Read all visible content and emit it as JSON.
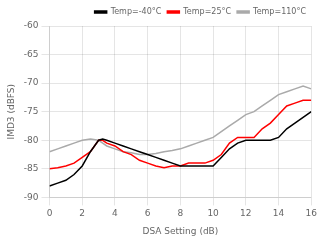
{
  "chart_data": {
    "type": "line",
    "xlabel": "DSA Setting (dB)",
    "ylabel": "IMD3 (dBFS)",
    "x": [
      0,
      0.5,
      1,
      1.5,
      2,
      2.5,
      3,
      3.25,
      3.5,
      4,
      4.5,
      5,
      5.5,
      6,
      6.5,
      7,
      7.5,
      8,
      8.5,
      9,
      9.5,
      10,
      10.5,
      11,
      11.5,
      12,
      12.5,
      13,
      13.5,
      14,
      14.5,
      15,
      15.5,
      16
    ],
    "series": [
      {
        "name": "Temp=-40°C",
        "color": "black",
        "values": [
          -88,
          -87.5,
          -87,
          -86,
          -84.5,
          -82,
          -80,
          -79.8,
          -80,
          -80.5,
          -81,
          -81.5,
          -82,
          -82.5,
          -83,
          -83.5,
          -84,
          -84.5,
          -84.5,
          -84.5,
          -84.5,
          -84.5,
          -83,
          -81.5,
          -80.5,
          -80,
          -80,
          -80,
          -80,
          -79.5,
          -78,
          -77,
          -76,
          -75
        ]
      },
      {
        "name": "Temp=25°C",
        "color": "red",
        "values": [
          -85,
          -84.8,
          -84.5,
          -84,
          -83,
          -82,
          -80,
          -80,
          -80.5,
          -81,
          -82,
          -82.5,
          -83.5,
          -84,
          -84.5,
          -84.8,
          -84.5,
          -84.5,
          -84,
          -84,
          -84,
          -83.5,
          -82.5,
          -80.5,
          -79.5,
          -79.5,
          -79.5,
          -78,
          -77,
          -75.5,
          -74,
          -73.5,
          -73,
          -73
        ]
      },
      {
        "name": "Temp=110°C",
        "color": "#aaaaaa",
        "values": [
          -82,
          -81.5,
          -81,
          -80.5,
          -80,
          -79.8,
          -80,
          -80.5,
          -81,
          -81.5,
          -82,
          -82.2,
          -82.5,
          -82.5,
          -82.3,
          -82,
          -81.8,
          -81.5,
          -81,
          -80.5,
          -80,
          -79.5,
          -78.5,
          -77.5,
          -76.5,
          -75.5,
          -75,
          -74,
          -73,
          -72,
          -71.5,
          -71,
          -70.5,
          -71
        ]
      }
    ],
    "xlim": [
      0,
      16
    ],
    "ylim": [
      -90,
      -60
    ],
    "xticks": [
      0,
      2,
      4,
      6,
      8,
      10,
      12,
      14,
      16
    ],
    "yticks": [
      -90,
      -85,
      -80,
      -75,
      -70,
      -65,
      -60
    ],
    "grid": true,
    "legend": "upper right"
  }
}
